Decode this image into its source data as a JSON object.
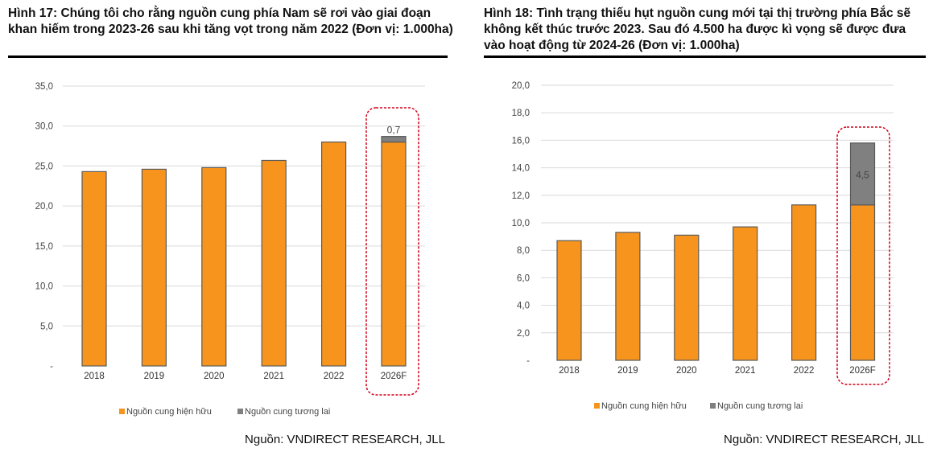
{
  "colors": {
    "existing": "#F7941D",
    "future": "#808080",
    "outline": "#5a5a5a",
    "highlight": "#d0021b",
    "grid": "#d9d9d9"
  },
  "chart_data": [
    {
      "type": "bar",
      "stacked": true,
      "title": "Hình 17: Chúng tôi cho rằng nguồn cung phía Nam sẽ rơi vào giai đoạn khan hiếm trong 2023-26 sau khi tăng vọt trong năm 2022 (Đơn vị: 1.000ha)",
      "categories": [
        "2018",
        "2019",
        "2020",
        "2021",
        "2022",
        "2026F"
      ],
      "series": [
        {
          "name": "Nguồn cung hiện hữu",
          "values": [
            24.3,
            24.6,
            24.8,
            25.7,
            28.0,
            28.0
          ]
        },
        {
          "name": "Nguồn cung tương lai",
          "values": [
            0,
            0,
            0,
            0,
            0,
            0.7
          ]
        }
      ],
      "data_labels": [
        {
          "category": "2026F",
          "series": "Nguồn cung tương lai",
          "text": "0,7"
        }
      ],
      "yticks": [
        "-",
        "5,0",
        "10,0",
        "15,0",
        "20,0",
        "25,0",
        "30,0",
        "35,0"
      ],
      "ylim": [
        0,
        35
      ],
      "grid": true,
      "legend": "bottom",
      "highlight": "2026F",
      "source": "Nguồn: VNDIRECT RESEARCH, JLL"
    },
    {
      "type": "bar",
      "stacked": true,
      "title": "Hình 18: Tình trạng thiếu hụt nguồn cung mới tại thị trường phía Bắc sẽ không kết thúc trước 2023. Sau đó 4.500 ha được kì vọng sẽ được đưa vào hoạt động từ 2024-26 (Đơn vị: 1.000ha)",
      "categories": [
        "2018",
        "2019",
        "2020",
        "2021",
        "2022",
        "2026F"
      ],
      "series": [
        {
          "name": "Nguồn cung hiện hữu",
          "values": [
            8.7,
            9.3,
            9.1,
            9.7,
            11.3,
            11.3
          ]
        },
        {
          "name": "Nguồn cung tương lai",
          "values": [
            0,
            0,
            0,
            0,
            0,
            4.5
          ]
        }
      ],
      "data_labels": [
        {
          "category": "2026F",
          "series": "Nguồn cung tương lai",
          "text": "4,5"
        }
      ],
      "yticks": [
        "-",
        "2,0",
        "4,0",
        "6,0",
        "8,0",
        "10,0",
        "12,0",
        "14,0",
        "16,0",
        "18,0",
        "20,0"
      ],
      "ylim": [
        0,
        20
      ],
      "grid": true,
      "legend": "bottom",
      "highlight": "2026F",
      "source": "Nguồn: VNDIRECT RESEARCH, JLL"
    }
  ]
}
